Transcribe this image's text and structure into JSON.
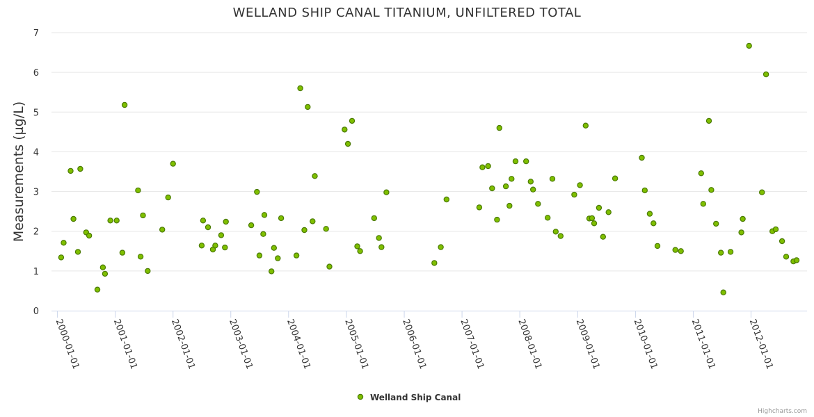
{
  "chart_data": {
    "type": "scatter",
    "title": "WELLAND SHIP CANAL TITANIUM, UNFILTERED TOTAL",
    "ylabel": "Measurements (µg/L)",
    "xlabel": "",
    "ylim": [
      0,
      7
    ],
    "yticks": [
      "0",
      "1",
      "2",
      "3",
      "4",
      "5",
      "6",
      "7"
    ],
    "x_axis": "datetime",
    "xlim": [
      "1999-11-25",
      "2012-12-20"
    ],
    "xticks": [
      "2000-01-01",
      "2001-01-01",
      "2002-01-01",
      "2003-01-01",
      "2004-01-01",
      "2005-01-01",
      "2006-01-01",
      "2007-01-01",
      "2008-01-01",
      "2009-01-01",
      "2010-01-01",
      "2011-01-01",
      "2012-01-01"
    ],
    "grid": true,
    "legend_position": "bottom-center",
    "marker_color": "#7fbf00",
    "marker_edge_color": "#4a7a00",
    "series": [
      {
        "name": "Welland Ship Canal",
        "points": [
          [
            "2000-01-25",
            1.34
          ],
          [
            "2000-02-10",
            1.71
          ],
          [
            "2000-03-25",
            3.52
          ],
          [
            "2000-04-12",
            2.31
          ],
          [
            "2000-05-10",
            1.48
          ],
          [
            "2000-05-25",
            3.57
          ],
          [
            "2000-07-01",
            1.97
          ],
          [
            "2000-07-20",
            1.89
          ],
          [
            "2000-09-10",
            0.53
          ],
          [
            "2000-10-15",
            1.09
          ],
          [
            "2000-10-28",
            0.93
          ],
          [
            "2000-12-01",
            2.27
          ],
          [
            "2001-01-10",
            2.27
          ],
          [
            "2001-02-15",
            1.46
          ],
          [
            "2001-03-01",
            5.18
          ],
          [
            "2001-05-25",
            3.03
          ],
          [
            "2001-06-10",
            1.36
          ],
          [
            "2001-06-25",
            2.4
          ],
          [
            "2001-07-25",
            1.0
          ],
          [
            "2001-10-25",
            2.04
          ],
          [
            "2001-12-01",
            2.85
          ],
          [
            "2002-01-01",
            3.7
          ],
          [
            "2002-07-01",
            1.64
          ],
          [
            "2002-07-10",
            2.27
          ],
          [
            "2002-08-10",
            2.1
          ],
          [
            "2002-09-10",
            1.54
          ],
          [
            "2002-09-25",
            1.64
          ],
          [
            "2002-11-01",
            1.9
          ],
          [
            "2002-11-25",
            1.59
          ],
          [
            "2002-12-01",
            2.24
          ],
          [
            "2003-05-10",
            2.15
          ],
          [
            "2003-06-15",
            2.99
          ],
          [
            "2003-07-01",
            1.39
          ],
          [
            "2003-07-25",
            1.93
          ],
          [
            "2003-08-01",
            2.41
          ],
          [
            "2003-09-15",
            0.99
          ],
          [
            "2003-10-01",
            1.58
          ],
          [
            "2003-10-25",
            1.32
          ],
          [
            "2003-11-15",
            2.33
          ],
          [
            "2004-02-20",
            1.39
          ],
          [
            "2004-03-15",
            5.6
          ],
          [
            "2004-04-10",
            2.03
          ],
          [
            "2004-05-01",
            5.13
          ],
          [
            "2004-06-01",
            2.25
          ],
          [
            "2004-06-15",
            3.39
          ],
          [
            "2004-08-25",
            2.06
          ],
          [
            "2004-09-15",
            1.11
          ],
          [
            "2004-12-20",
            4.56
          ],
          [
            "2005-01-10",
            4.2
          ],
          [
            "2005-02-05",
            4.78
          ],
          [
            "2005-03-10",
            1.62
          ],
          [
            "2005-03-28",
            1.5
          ],
          [
            "2005-06-25",
            2.33
          ],
          [
            "2005-07-25",
            1.83
          ],
          [
            "2005-08-10",
            1.6
          ],
          [
            "2005-09-10",
            2.98
          ],
          [
            "2006-07-10",
            1.2
          ],
          [
            "2006-08-20",
            1.6
          ],
          [
            "2006-09-25",
            2.8
          ],
          [
            "2007-04-20",
            2.6
          ],
          [
            "2007-05-10",
            3.61
          ],
          [
            "2007-06-15",
            3.64
          ],
          [
            "2007-07-10",
            3.08
          ],
          [
            "2007-08-10",
            2.29
          ],
          [
            "2007-08-25",
            4.6
          ],
          [
            "2007-10-05",
            3.13
          ],
          [
            "2007-10-28",
            2.64
          ],
          [
            "2007-11-10",
            3.32
          ],
          [
            "2007-12-05",
            3.76
          ],
          [
            "2008-02-10",
            3.76
          ],
          [
            "2008-03-10",
            3.25
          ],
          [
            "2008-03-25",
            3.05
          ],
          [
            "2008-04-25",
            2.69
          ],
          [
            "2008-06-25",
            2.34
          ],
          [
            "2008-07-25",
            3.32
          ],
          [
            "2008-08-15",
            1.99
          ],
          [
            "2008-09-15",
            1.88
          ],
          [
            "2008-12-10",
            2.92
          ],
          [
            "2009-01-15",
            3.16
          ],
          [
            "2009-02-20",
            4.66
          ],
          [
            "2009-03-15",
            2.32
          ],
          [
            "2009-04-01",
            2.33
          ],
          [
            "2009-04-15",
            2.2
          ],
          [
            "2009-05-15",
            2.59
          ],
          [
            "2009-06-10",
            1.86
          ],
          [
            "2009-07-15",
            2.48
          ],
          [
            "2009-08-25",
            3.33
          ],
          [
            "2010-02-10",
            3.85
          ],
          [
            "2010-03-01",
            3.03
          ],
          [
            "2010-04-01",
            2.44
          ],
          [
            "2010-04-25",
            2.2
          ],
          [
            "2010-05-20",
            1.63
          ],
          [
            "2010-09-10",
            1.53
          ],
          [
            "2010-10-15",
            1.5
          ],
          [
            "2011-02-20",
            3.46
          ],
          [
            "2011-03-05",
            2.69
          ],
          [
            "2011-04-10",
            4.78
          ],
          [
            "2011-04-25",
            3.04
          ],
          [
            "2011-05-25",
            2.19
          ],
          [
            "2011-06-25",
            1.46
          ],
          [
            "2011-07-10",
            0.46
          ],
          [
            "2011-08-25",
            1.48
          ],
          [
            "2011-11-01",
            1.97
          ],
          [
            "2011-11-10",
            2.31
          ],
          [
            "2011-12-20",
            6.67
          ],
          [
            "2012-03-10",
            2.98
          ],
          [
            "2012-04-05",
            5.95
          ],
          [
            "2012-05-15",
            2.0
          ],
          [
            "2012-06-05",
            2.05
          ],
          [
            "2012-07-15",
            1.75
          ],
          [
            "2012-08-10",
            1.36
          ],
          [
            "2012-09-25",
            1.24
          ],
          [
            "2012-10-15",
            1.27
          ]
        ]
      }
    ],
    "credits": "Highcharts.com"
  }
}
